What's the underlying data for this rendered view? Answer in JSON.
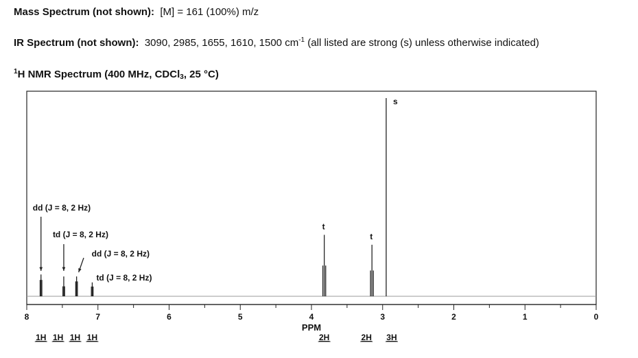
{
  "header": {
    "ms_label": "Mass Spectrum (not shown):",
    "ms_value": "[M] = 161 (100%) m/z",
    "ir_label": "IR Spectrum (not shown):",
    "ir_values": "3090, 2985, 1655, 1610, 1500 cm",
    "ir_superscript": "-1",
    "ir_note": "(all listed are strong (s) unless otherwise indicated)",
    "nmr_sup": "1",
    "nmr_label_a": "H NMR Spectrum (400 MHz, CDCl",
    "nmr_sub": "3",
    "nmr_label_b": ", 25 °C)"
  },
  "chart_data": {
    "type": "line",
    "subtype": "nmr-stick-spectrum",
    "xlabel": "PPM",
    "xlim": [
      8,
      0
    ],
    "x_reversed": true,
    "xticks_major": [
      8,
      7,
      6,
      5,
      4,
      3,
      2,
      1,
      0
    ],
    "xticks_minor": [
      7.5,
      6.5,
      5.5,
      4.5,
      3.5,
      2.5,
      1.5,
      0.5
    ],
    "ylim": [
      0,
      1
    ],
    "grid": false,
    "peaks": [
      {
        "ppm": 7.8,
        "height": 0.11,
        "multiplicity": "dd",
        "label": "dd (J = 8, 2 Hz)",
        "integration": "1H",
        "lines": [
          -0.012,
          0.0,
          0.012
        ],
        "rel": [
          0.75,
          1.0,
          0.75
        ]
      },
      {
        "ppm": 7.48,
        "height": 0.1,
        "multiplicity": "td",
        "label": "td (J = 8, 2 Hz)",
        "integration": "1H",
        "lines": [
          -0.012,
          0.0,
          0.012
        ],
        "rel": [
          0.5,
          1.0,
          0.5
        ]
      },
      {
        "ppm": 7.3,
        "height": 0.1,
        "multiplicity": "dd",
        "label": "dd (J = 8, 2 Hz)",
        "integration": "1H",
        "lines": [
          -0.012,
          0.0,
          0.012
        ],
        "rel": [
          0.75,
          1.0,
          0.75
        ]
      },
      {
        "ppm": 7.08,
        "height": 0.07,
        "multiplicity": "td",
        "label": "td (J = 8, 2 Hz)",
        "integration": "1H",
        "lines": [
          -0.012,
          0.0,
          0.012
        ],
        "rel": [
          0.7,
          1.0,
          0.7
        ]
      },
      {
        "ppm": 3.82,
        "height": 0.31,
        "multiplicity": "t",
        "label": "t",
        "integration": "2H",
        "lines": [
          -0.02,
          0.0,
          0.02
        ],
        "rel": [
          0.5,
          1.0,
          0.5
        ]
      },
      {
        "ppm": 3.15,
        "height": 0.26,
        "multiplicity": "t",
        "label": "t",
        "integration": "2H",
        "lines": [
          -0.02,
          0.0,
          0.02
        ],
        "rel": [
          0.5,
          1.0,
          0.5
        ]
      },
      {
        "ppm": 2.95,
        "height": 1.0,
        "multiplicity": "s",
        "label": "s",
        "integration": "3H",
        "lines": [
          0.0
        ],
        "rel": [
          1.0
        ]
      }
    ],
    "integration_labels": [
      {
        "text": "1H",
        "ppm": 7.8
      },
      {
        "text": "1H",
        "ppm": 7.56
      },
      {
        "text": "1H",
        "ppm": 7.32
      },
      {
        "text": "1H",
        "ppm": 7.08
      },
      {
        "text": "2H",
        "ppm": 3.82
      },
      {
        "text": "2H",
        "ppm": 3.15
      },
      {
        "text": "3H",
        "ppm": 2.95
      }
    ]
  }
}
